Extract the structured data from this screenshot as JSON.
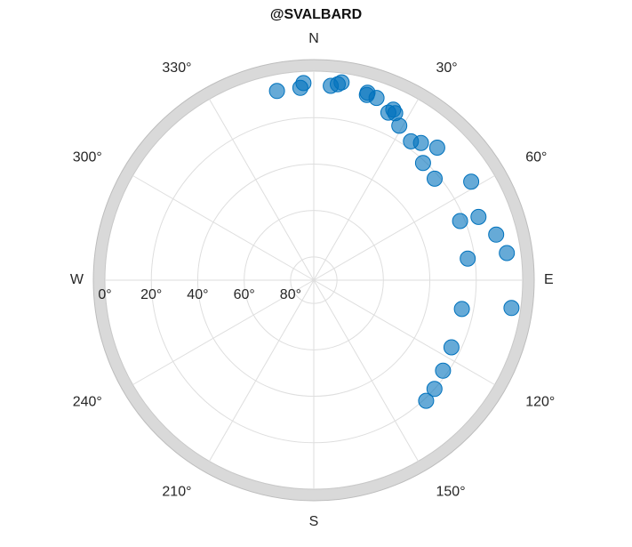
{
  "chart_data": {
    "type": "scatter",
    "polar": true,
    "title": "@SVALBARD",
    "cardinal_labels": {
      "N": "N",
      "E": "E",
      "S": "S",
      "W": "W"
    },
    "angle_ticks": [
      {
        "angle": 30,
        "label": "30°"
      },
      {
        "angle": 60,
        "label": "60°"
      },
      {
        "angle": 120,
        "label": "120°"
      },
      {
        "angle": 150,
        "label": "150°"
      },
      {
        "angle": 210,
        "label": "210°"
      },
      {
        "angle": 240,
        "label": "240°"
      },
      {
        "angle": 300,
        "label": "300°"
      },
      {
        "angle": 330,
        "label": "330°"
      }
    ],
    "radial_ticks": [
      {
        "elevation": 0,
        "label": "0°"
      },
      {
        "elevation": 20,
        "label": "20°"
      },
      {
        "elevation": 40,
        "label": "40°"
      },
      {
        "elevation": 60,
        "label": "60°"
      },
      {
        "elevation": 80,
        "label": "80°"
      }
    ],
    "elevation_range": [
      0,
      90
    ],
    "marker_color": "#0072BD",
    "points": [
      {
        "azimuth": 349,
        "elevation": 7
      },
      {
        "azimuth": 356,
        "elevation": 7
      },
      {
        "azimuth": 357,
        "elevation": 5
      },
      {
        "azimuth": 5,
        "elevation": 6
      },
      {
        "azimuth": 7,
        "elevation": 5
      },
      {
        "azimuth": 8,
        "elevation": 4
      },
      {
        "azimuth": 16,
        "elevation": 7
      },
      {
        "azimuth": 16,
        "elevation": 6
      },
      {
        "azimuth": 19,
        "elevation": 7
      },
      {
        "azimuth": 24,
        "elevation": 11
      },
      {
        "azimuth": 25,
        "elevation": 9
      },
      {
        "azimuth": 26,
        "elevation": 10
      },
      {
        "azimuth": 29,
        "elevation": 14
      },
      {
        "azimuth": 35,
        "elevation": 17
      },
      {
        "azimuth": 38,
        "elevation": 15
      },
      {
        "azimuth": 43,
        "elevation": 12
      },
      {
        "azimuth": 43,
        "elevation": 21
      },
      {
        "azimuth": 50,
        "elevation": 22
      },
      {
        "azimuth": 58,
        "elevation": 10
      },
      {
        "azimuth": 68,
        "elevation": 22
      },
      {
        "azimuth": 69,
        "elevation": 14
      },
      {
        "azimuth": 76,
        "elevation": 9
      },
      {
        "azimuth": 82,
        "elevation": 23
      },
      {
        "azimuth": 82,
        "elevation": 6
      },
      {
        "azimuth": 98,
        "elevation": 4
      },
      {
        "azimuth": 101,
        "elevation": 25
      },
      {
        "azimuth": 116,
        "elevation": 24
      },
      {
        "azimuth": 125,
        "elevation": 22
      },
      {
        "azimuth": 132,
        "elevation": 20
      },
      {
        "azimuth": 137,
        "elevation": 19
      }
    ]
  }
}
